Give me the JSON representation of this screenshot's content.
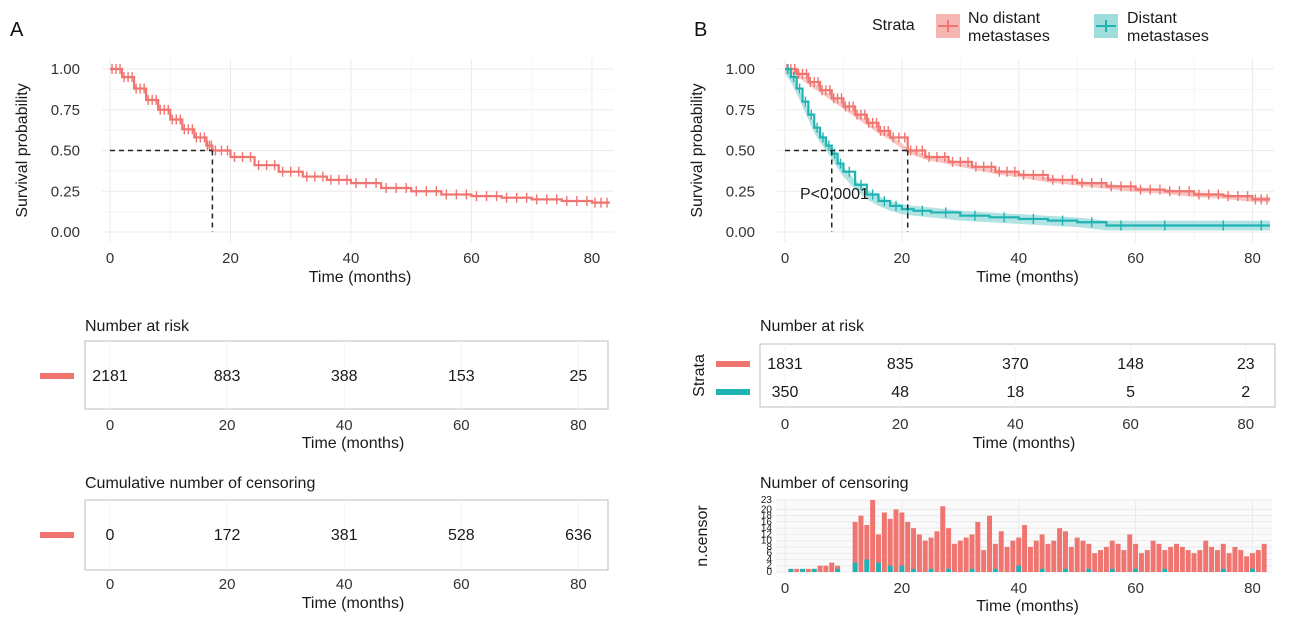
{
  "colors": {
    "no_distant": "#F07470",
    "distant": "#1FB3B3",
    "no_distant_ci": "#F6B6B3",
    "distant_ci": "#9FDCDC"
  },
  "panelA": {
    "label": "A"
  },
  "panelB": {
    "label": "B"
  },
  "legend": {
    "title": "Strata",
    "items": [
      "No distant metastases",
      "Distant metastases"
    ]
  },
  "annotation": {
    "pvalue": "P<0.0001"
  },
  "chart_data": [
    {
      "id": "A-survival",
      "type": "line",
      "title": "",
      "xlabel": "Time (months)",
      "ylabel": "Survival probability",
      "xlim": [
        0,
        83
      ],
      "ylim": [
        0,
        1
      ],
      "xticks": [
        "0",
        "20",
        "40",
        "60",
        "80"
      ],
      "yticks": [
        "0.00",
        "0.25",
        "0.50",
        "0.75",
        "1.00"
      ],
      "median_survival": 17,
      "series": [
        {
          "x": [
            0,
            2,
            4,
            6,
            8,
            10,
            12,
            14,
            16,
            17,
            20,
            24,
            28,
            32,
            36,
            40,
            45,
            50,
            55,
            60,
            65,
            70,
            75,
            80,
            83
          ],
          "y": [
            1.0,
            0.95,
            0.88,
            0.81,
            0.75,
            0.69,
            0.63,
            0.58,
            0.53,
            0.5,
            0.46,
            0.41,
            0.37,
            0.34,
            0.32,
            0.3,
            0.27,
            0.25,
            0.23,
            0.22,
            0.21,
            0.2,
            0.19,
            0.18,
            0.18
          ]
        }
      ]
    },
    {
      "id": "A-risk",
      "type": "table",
      "title": "Number at risk",
      "xlabel": "Time (months)",
      "xticks": [
        "0",
        "20",
        "40",
        "60",
        "80"
      ],
      "times": [
        0,
        20,
        40,
        60,
        80
      ],
      "rows": [
        {
          "values": [
            "2181",
            "883",
            "388",
            "153",
            "25"
          ]
        }
      ]
    },
    {
      "id": "A-censor",
      "type": "table",
      "title": "Cumulative number of censoring",
      "xlabel": "Time (months)",
      "xticks": [
        "0",
        "20",
        "40",
        "60",
        "80"
      ],
      "times": [
        0,
        20,
        40,
        60,
        80
      ],
      "rows": [
        {
          "values": [
            "0",
            "172",
            "381",
            "528",
            "636"
          ]
        }
      ]
    },
    {
      "id": "B-survival",
      "type": "line",
      "title": "",
      "xlabel": "Time (months)",
      "ylabel": "Survival probability",
      "xlim": [
        0,
        83
      ],
      "ylim": [
        0,
        1
      ],
      "xticks": [
        "0",
        "20",
        "40",
        "60",
        "80"
      ],
      "yticks": [
        "0.00",
        "0.25",
        "0.50",
        "0.75",
        "1.00"
      ],
      "median_survival": {
        "no_distant": 21,
        "distant": 8
      },
      "series": [
        {
          "name": "No distant metastases",
          "x": [
            0,
            2,
            4,
            6,
            8,
            10,
            12,
            14,
            16,
            18,
            21,
            24,
            28,
            32,
            36,
            40,
            45,
            50,
            55,
            60,
            65,
            70,
            75,
            80,
            83
          ],
          "y": [
            1.0,
            0.97,
            0.92,
            0.87,
            0.82,
            0.77,
            0.72,
            0.67,
            0.62,
            0.58,
            0.5,
            0.46,
            0.43,
            0.4,
            0.37,
            0.35,
            0.32,
            0.3,
            0.28,
            0.26,
            0.25,
            0.23,
            0.22,
            0.2,
            0.2
          ]
        },
        {
          "name": "Distant metastases",
          "x": [
            0,
            1,
            2,
            3,
            4,
            5,
            6,
            7,
            8,
            9,
            10,
            12,
            14,
            16,
            18,
            20,
            22,
            25,
            30,
            35,
            40,
            45,
            50,
            55,
            60,
            70,
            80,
            83
          ],
          "y": [
            1.0,
            0.95,
            0.88,
            0.8,
            0.72,
            0.64,
            0.58,
            0.53,
            0.48,
            0.42,
            0.37,
            0.29,
            0.23,
            0.19,
            0.16,
            0.14,
            0.13,
            0.12,
            0.1,
            0.09,
            0.08,
            0.07,
            0.06,
            0.04,
            0.04,
            0.04,
            0.04,
            0.04
          ]
        }
      ]
    },
    {
      "id": "B-risk",
      "type": "table",
      "title": "Number at risk",
      "ylabel": "Strata",
      "xlabel": "Time (months)",
      "xticks": [
        "0",
        "20",
        "40",
        "60",
        "80"
      ],
      "times": [
        0,
        20,
        40,
        60,
        80
      ],
      "rows": [
        {
          "name": "No distant metastases",
          "values": [
            "1831",
            "835",
            "370",
            "148",
            "23"
          ]
        },
        {
          "name": "Distant metastases",
          "values": [
            "350",
            "48",
            "18",
            "5",
            "2"
          ]
        }
      ]
    },
    {
      "id": "B-censor",
      "type": "bar",
      "title": "Number of censoring",
      "xlabel": "Time (months)",
      "ylabel": "n.censor",
      "xlim": [
        0,
        83
      ],
      "ylim": [
        0,
        23
      ],
      "xticks": [
        "0",
        "20",
        "40",
        "60",
        "80"
      ],
      "yticks": [
        "0",
        "2",
        "4",
        "6",
        "8",
        "10",
        "12",
        "14",
        "16",
        "18",
        "20",
        "23"
      ],
      "series": [
        {
          "name": "No distant metastases",
          "x": [
            1,
            2,
            3,
            4,
            5,
            6,
            7,
            8,
            9,
            10,
            11,
            12,
            13,
            14,
            15,
            16,
            17,
            18,
            19,
            20,
            21,
            22,
            23,
            24,
            25,
            26,
            27,
            28,
            29,
            30,
            31,
            32,
            33,
            34,
            35,
            36,
            37,
            38,
            39,
            40,
            41,
            42,
            43,
            44,
            45,
            46,
            47,
            48,
            49,
            50,
            51,
            52,
            53,
            54,
            55,
            56,
            57,
            58,
            59,
            60,
            61,
            62,
            63,
            64,
            65,
            66,
            67,
            68,
            69,
            70,
            71,
            72,
            73,
            74,
            75,
            76,
            77,
            78,
            79,
            80,
            81,
            82
          ],
          "values": [
            1,
            1,
            0,
            1,
            1,
            2,
            2,
            3,
            2,
            0,
            0,
            16,
            18,
            15,
            23,
            12,
            19,
            17,
            20,
            19,
            16,
            14,
            12,
            10,
            11,
            13,
            21,
            14,
            9,
            10,
            11,
            12,
            16,
            7,
            18,
            9,
            13,
            8,
            10,
            11,
            15,
            8,
            10,
            12,
            9,
            10,
            14,
            13,
            8,
            11,
            10,
            9,
            6,
            7,
            8,
            10,
            9,
            7,
            12,
            9,
            6,
            7,
            10,
            9,
            7,
            8,
            9,
            8,
            7,
            6,
            7,
            10,
            8,
            7,
            9,
            6,
            8,
            7,
            5,
            6,
            7,
            9
          ]
        },
        {
          "name": "Distant metastases",
          "x": [
            1,
            3,
            5,
            7,
            9,
            12,
            14,
            16,
            18,
            20,
            22,
            25,
            28,
            32,
            36,
            40,
            44,
            48,
            52,
            56,
            60,
            65,
            70,
            75,
            80
          ],
          "values": [
            1,
            1,
            1,
            0,
            1,
            3,
            4,
            3,
            2,
            2,
            1,
            1,
            1,
            1,
            1,
            2,
            1,
            1,
            1,
            1,
            1,
            1,
            0,
            1,
            1
          ]
        }
      ]
    }
  ]
}
